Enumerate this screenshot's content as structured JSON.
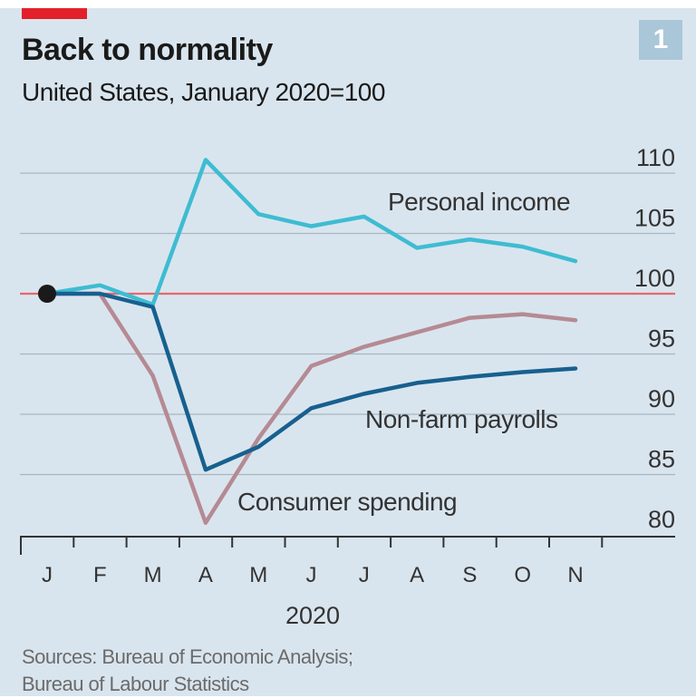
{
  "badge": "1",
  "source_lines": [
    "Sources: Bureau of Economic Analysis;",
    "Bureau of Labour Statistics"
  ],
  "colors": {
    "background": "#d9e5ee",
    "personal_income": "#3ebcd2",
    "payrolls": "#17608f",
    "consumer": "#b58a93",
    "baseline": "#e5686b",
    "brand": "#e3202a"
  },
  "chart_data": {
    "type": "line",
    "title": "Back to normality",
    "subtitle": "United States, January 2020=100",
    "xlabel": "2020",
    "categories": [
      "J",
      "F",
      "M",
      "A",
      "M",
      "J",
      "J",
      "A",
      "S",
      "O",
      "N"
    ],
    "ylim": [
      80,
      110
    ],
    "yticks": [
      80,
      85,
      90,
      95,
      100,
      105,
      110
    ],
    "grid": true,
    "series": [
      {
        "name": "Personal income",
        "values": [
          100,
          100.7,
          99.1,
          111.1,
          106.6,
          105.6,
          106.4,
          103.8,
          104.5,
          103.9,
          102.7
        ]
      },
      {
        "name": "Non-farm payrolls",
        "values": [
          100,
          100,
          98.9,
          85.4,
          87.3,
          90.5,
          91.7,
          92.6,
          93.1,
          93.5,
          93.8
        ]
      },
      {
        "name": "Consumer spending",
        "values": [
          100,
          100,
          93.2,
          81.0,
          88.0,
          94.0,
          95.6,
          96.8,
          98.0,
          98.3,
          97.8
        ]
      }
    ]
  }
}
